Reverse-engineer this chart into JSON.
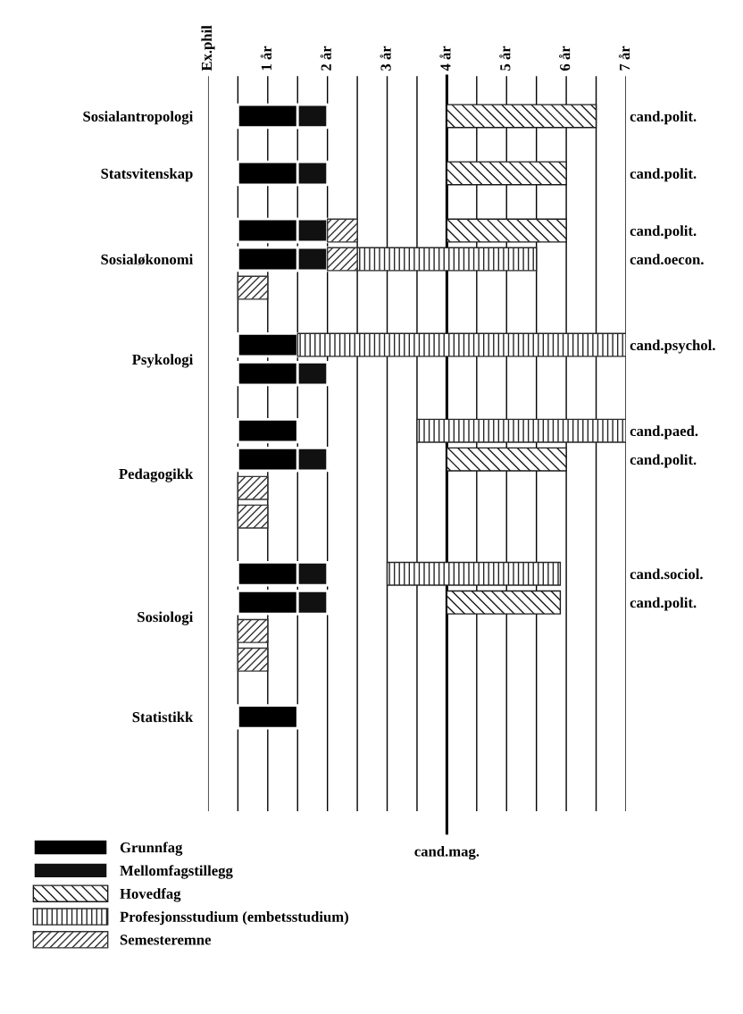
{
  "chart_data": {
    "type": "bar",
    "orientation": "horizontal",
    "categories": [
      "Sosialantropologi",
      null,
      null,
      null,
      "Statsvitenskap",
      null,
      null,
      null,
      null,
      null,
      "Sosialøkonomi",
      null,
      null,
      null,
      null,
      null,
      null,
      "Psykologi",
      null,
      null,
      null,
      null,
      null,
      null,
      null,
      "Pedagogikk",
      null,
      null,
      null,
      null,
      null,
      null,
      null,
      null,
      null,
      "Sosiologi",
      null,
      null,
      null,
      null,
      null,
      null,
      "Statistikk"
    ],
    "y2_categories": [
      "cand.polit.",
      null,
      null,
      null,
      "cand.polit.",
      null,
      null,
      null,
      "cand.polit.",
      null,
      "cand.oecon.",
      null,
      null,
      null,
      null,
      null,
      "cand.psychol.",
      null,
      null,
      null,
      null,
      null,
      "cand.paed.",
      null,
      "cand.polit.",
      null,
      null,
      null,
      null,
      null,
      null,
      null,
      "cand.sociol.",
      null,
      "cand.polit.",
      null,
      null,
      null,
      null,
      null,
      null,
      null,
      null
    ],
    "series": [
      {
        "name": "Grunnfag",
        "color": "#000000",
        "base": [
          0.5,
          null,
          null,
          null,
          0.5,
          null,
          null,
          null,
          0.5,
          null,
          0.5,
          null,
          null,
          null,
          null,
          null,
          0.5,
          null,
          0.5,
          null,
          null,
          null,
          0.5,
          null,
          0.5,
          null,
          null,
          null,
          null,
          null,
          null,
          null,
          0.5,
          null,
          0.5,
          null,
          null,
          null,
          null,
          null,
          null,
          null,
          0.5
        ],
        "values": [
          1,
          null,
          null,
          null,
          1,
          null,
          null,
          null,
          1,
          null,
          1,
          null,
          null,
          null,
          null,
          null,
          1,
          null,
          1,
          null,
          null,
          null,
          1,
          null,
          1,
          null,
          null,
          null,
          null,
          null,
          null,
          null,
          1,
          null,
          1,
          null,
          null,
          null,
          null,
          null,
          null,
          null,
          1
        ]
      },
      {
        "name": "Mellomfagstillegg",
        "color": "#111111",
        "base": [
          1.5,
          null,
          null,
          null,
          1.5,
          null,
          null,
          null,
          1.5,
          null,
          1.5,
          null,
          null,
          null,
          null,
          null,
          null,
          null,
          1.5,
          null,
          null,
          null,
          null,
          null,
          1.5,
          null,
          null,
          null,
          null,
          null,
          null,
          null,
          1.5,
          null,
          1.5,
          null,
          null,
          null,
          null,
          null,
          null,
          null,
          null
        ],
        "values": [
          0.5,
          null,
          null,
          null,
          0.5,
          null,
          null,
          null,
          0.5,
          null,
          0.5,
          null,
          null,
          null,
          null,
          null,
          null,
          null,
          0.5,
          null,
          null,
          null,
          null,
          null,
          0.5,
          null,
          null,
          null,
          null,
          null,
          null,
          null,
          0.5,
          null,
          0.5,
          null,
          null,
          null,
          null,
          null,
          null,
          null,
          null
        ]
      },
      {
        "name": "Hovedfag",
        "color": "#1a1a1a",
        "base": [
          4,
          null,
          null,
          null,
          4,
          null,
          null,
          null,
          4,
          null,
          null,
          null,
          null,
          null,
          null,
          null,
          null,
          null,
          null,
          null,
          null,
          null,
          null,
          null,
          4,
          null,
          null,
          null,
          null,
          null,
          null,
          null,
          null,
          null,
          4,
          null,
          null,
          null,
          null,
          null,
          null,
          null,
          null
        ],
        "values": [
          2.5,
          null,
          null,
          null,
          2,
          null,
          null,
          null,
          2,
          null,
          null,
          null,
          null,
          null,
          null,
          null,
          null,
          null,
          null,
          null,
          null,
          null,
          null,
          null,
          2,
          null,
          null,
          null,
          null,
          null,
          null,
          null,
          null,
          null,
          1.9,
          null,
          null,
          null,
          null,
          null,
          null,
          null,
          null
        ]
      },
      {
        "name": "Profesjonsstudium (embetsstudium)",
        "color": "#262626",
        "base": [
          null,
          null,
          null,
          null,
          null,
          null,
          null,
          null,
          null,
          null,
          2.5,
          null,
          null,
          null,
          null,
          null,
          1.5,
          null,
          null,
          null,
          null,
          null,
          3.5,
          null,
          null,
          null,
          null,
          null,
          null,
          null,
          null,
          null,
          3,
          null,
          null,
          null,
          null,
          null,
          null,
          null,
          null,
          null,
          null
        ],
        "values": [
          null,
          null,
          null,
          null,
          null,
          null,
          null,
          null,
          null,
          null,
          3,
          null,
          null,
          null,
          null,
          null,
          5.5,
          null,
          null,
          null,
          null,
          null,
          3.5,
          null,
          null,
          null,
          null,
          null,
          null,
          null,
          null,
          null,
          2.9,
          null,
          null,
          null,
          null,
          null,
          null,
          null,
          null,
          null,
          null
        ]
      },
      {
        "name": "Semesteremne",
        "color": "#333333",
        "base": [
          null,
          null,
          null,
          null,
          null,
          null,
          null,
          null,
          2,
          null,
          2,
          null,
          0.5,
          null,
          null,
          null,
          null,
          null,
          null,
          null,
          null,
          null,
          null,
          null,
          null,
          null,
          0.5,
          null,
          0.5,
          null,
          null,
          null,
          null,
          null,
          null,
          null,
          0.5,
          null,
          0.5,
          null,
          null,
          null,
          null
        ],
        "values": [
          null,
          null,
          null,
          null,
          null,
          null,
          null,
          null,
          0.5,
          null,
          0.5,
          null,
          0.5,
          null,
          null,
          null,
          null,
          null,
          null,
          null,
          null,
          null,
          null,
          null,
          null,
          null,
          0.5,
          null,
          0.5,
          null,
          null,
          null,
          null,
          null,
          null,
          null,
          0.5,
          null,
          0.5,
          null,
          null,
          null,
          null
        ]
      }
    ],
    "xlim": [
      0,
      7
    ],
    "xticks": [
      {
        "value": 0,
        "label": "Ex.phil"
      },
      {
        "value": 0.5,
        "label": null
      },
      {
        "value": 1,
        "label": "1 år"
      },
      {
        "value": 1.5,
        "label": null
      },
      {
        "value": 2,
        "label": "2 år"
      },
      {
        "value": 2.5,
        "label": null
      },
      {
        "value": 3,
        "label": "3 år"
      },
      {
        "value": 3.5,
        "label": null
      },
      {
        "value": 4,
        "label": "4 år"
      },
      {
        "value": 4.5,
        "label": null
      },
      {
        "value": 5,
        "label": "5 år"
      },
      {
        "value": 5.5,
        "label": null
      },
      {
        "value": 6,
        "label": "6 år"
      },
      {
        "value": 6.5,
        "label": null
      },
      {
        "value": 7,
        "label": "7 år"
      }
    ],
    "grid": "x",
    "ref_lines": [
      {
        "axis": "x",
        "value": 4,
        "label": "cand.mag.",
        "color": "#000000"
      }
    ],
    "legend": "bottom left"
  }
}
